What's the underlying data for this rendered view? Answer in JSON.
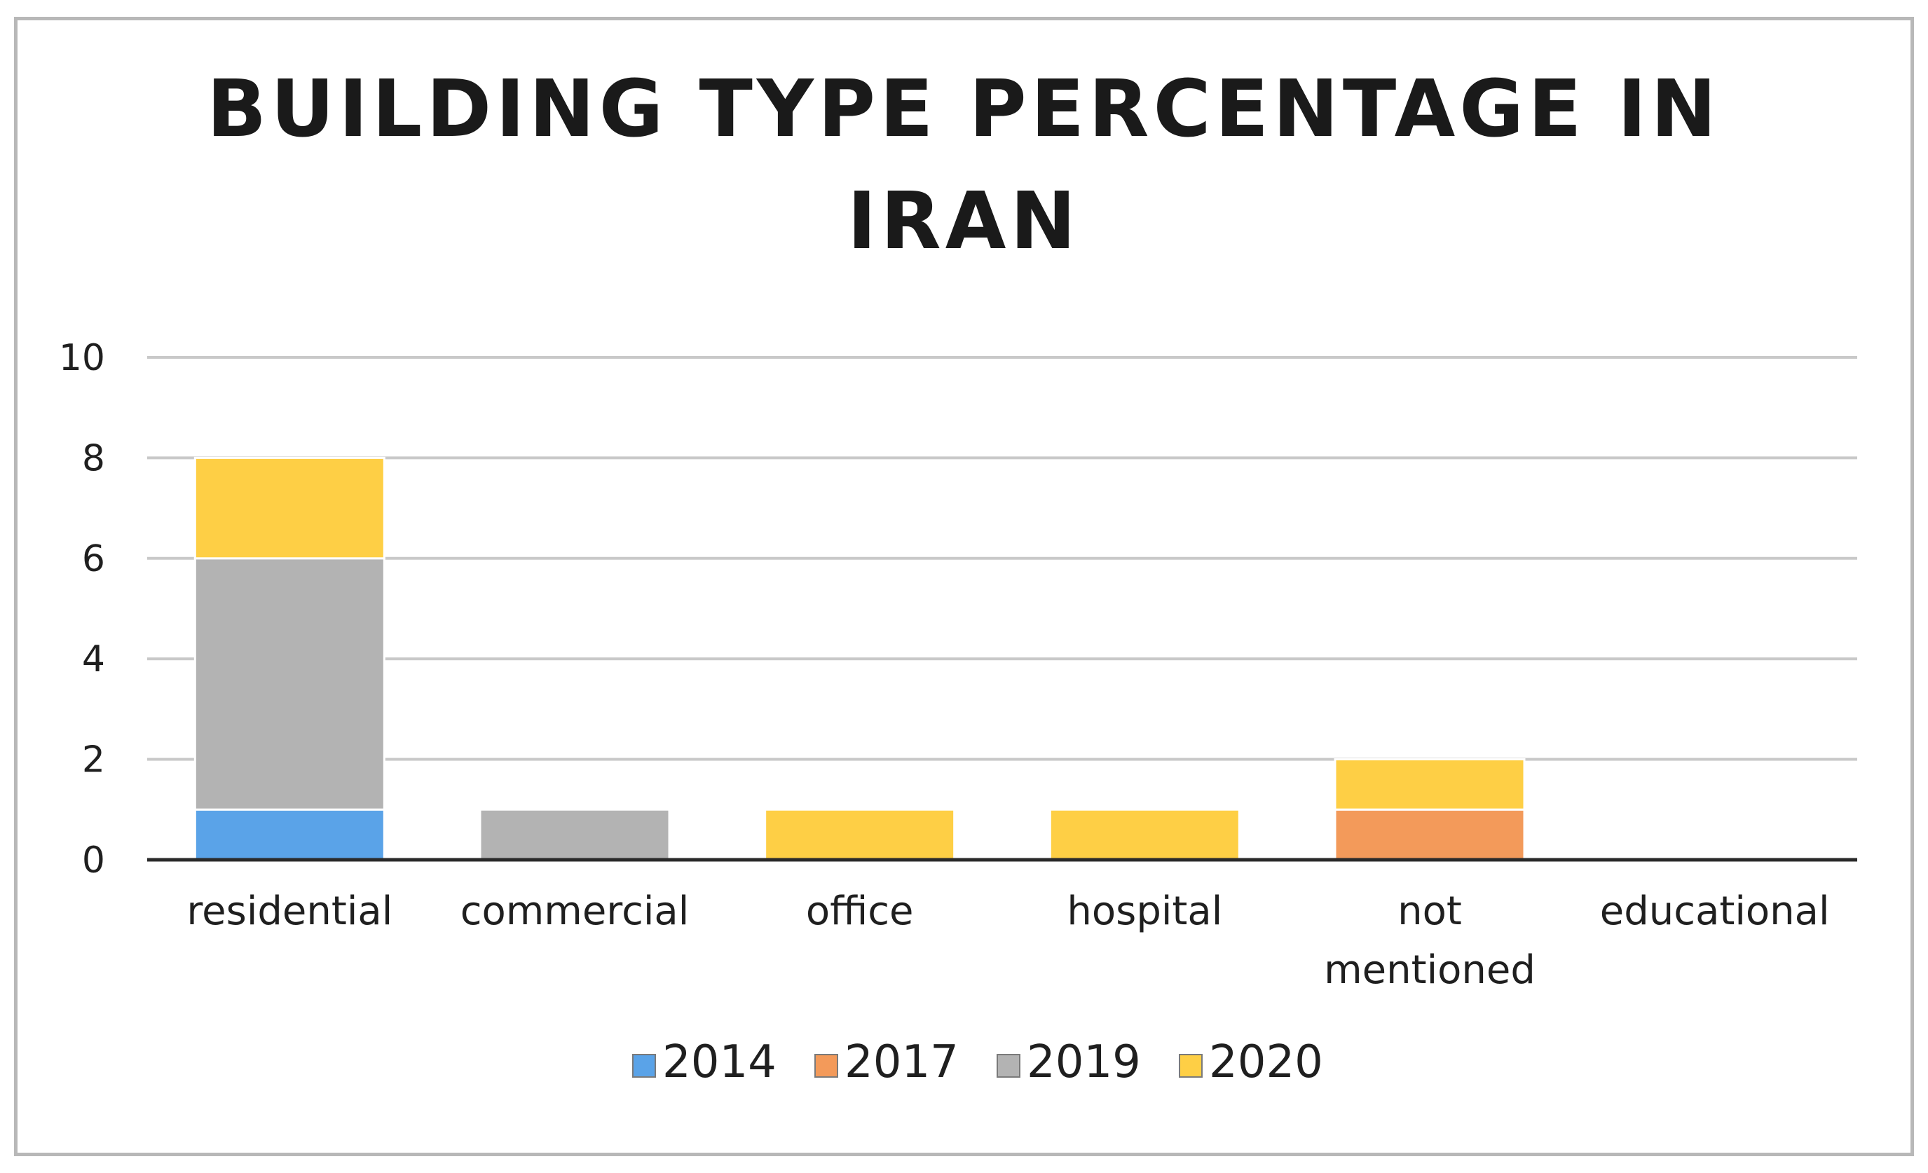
{
  "chart_data": {
    "type": "bar",
    "stacked": true,
    "title": "BUILDING TYPE PERCENTAGE IN IRAN",
    "title_lines": [
      "BUILDING TYPE PERCENTAGE IN",
      "IRAN"
    ],
    "categories": [
      "residential",
      "commercial",
      "office",
      "hospital",
      "not mentioned",
      "educational"
    ],
    "category_lines": [
      [
        "residential"
      ],
      [
        "commercial"
      ],
      [
        "office"
      ],
      [
        "hospital"
      ],
      [
        "not",
        "mentioned"
      ],
      [
        "educational"
      ]
    ],
    "series": [
      {
        "name": "2014",
        "color": "#5aa3e8",
        "values": [
          1,
          0,
          0,
          0,
          0,
          0
        ]
      },
      {
        "name": "2017",
        "color": "#f39a5a",
        "values": [
          0,
          0,
          0,
          0,
          1,
          0
        ]
      },
      {
        "name": "2019",
        "color": "#b3b3b3",
        "values": [
          5,
          1,
          0,
          0,
          0,
          0
        ]
      },
      {
        "name": "2020",
        "color": "#fecf45",
        "values": [
          2,
          0,
          1,
          1,
          1,
          0
        ]
      }
    ],
    "ylim": [
      0,
      10
    ],
    "yticks": [
      0,
      2,
      4,
      6,
      8,
      10
    ],
    "xlabel": "",
    "ylabel": "",
    "grid": true,
    "legend_position": "bottom"
  }
}
